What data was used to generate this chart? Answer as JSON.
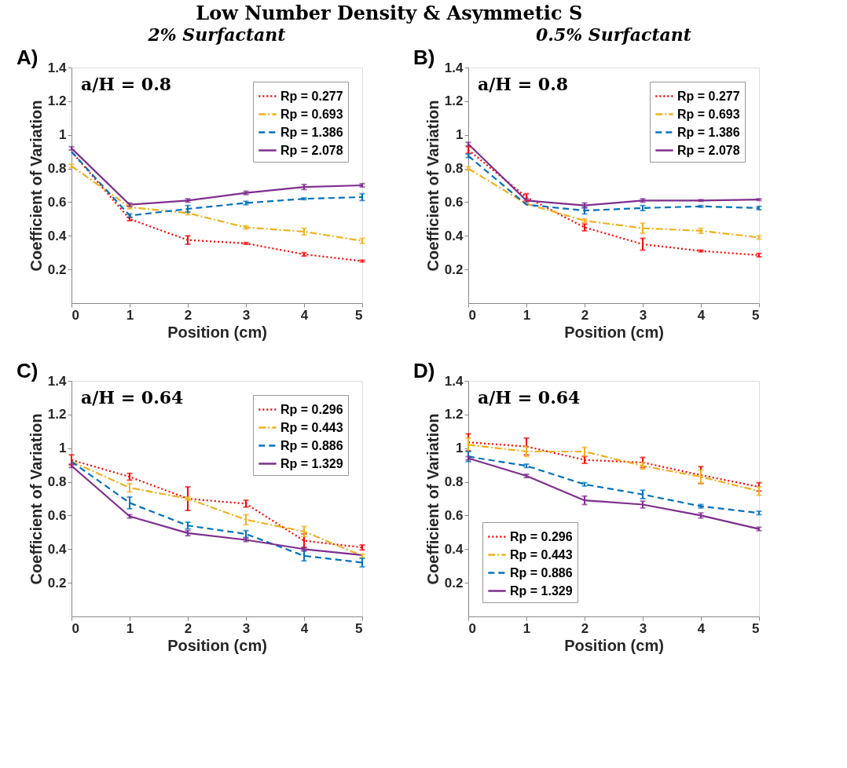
{
  "chart_data": [
    {
      "type": "line",
      "title": "Low Number Density & Asymmetic S",
      "subtitle": "2% Surfactant",
      "xlabel": "Position (cm)",
      "ylabel": "Coefficient of Variation",
      "annotations": [
        "A)",
        "a/H = 0.8"
      ],
      "x": [
        0,
        1,
        2,
        3,
        4,
        5
      ],
      "xlim": [
        0,
        5
      ],
      "xticks": [
        0,
        1,
        2,
        3,
        4,
        5
      ],
      "ylim": [
        0,
        1.4
      ],
      "yticks": [
        0.2,
        0.4,
        0.6,
        0.8,
        1,
        1.2,
        1.4
      ],
      "grid": false,
      "legend": "top right",
      "marker": "none",
      "series": [
        {
          "name": "Rp = 0.277",
          "color": "#ff0000",
          "line_style": "dotted",
          "values": [
            0.9,
            0.5,
            0.375,
            0.355,
            0.29,
            0.25
          ],
          "errors": [
            null,
            0.01,
            0.025,
            0.005,
            0.01,
            0.005
          ]
        },
        {
          "name": "Rp = 0.693",
          "color": "#edb120",
          "line_style": "dashdot",
          "values": [
            0.815,
            0.57,
            0.535,
            0.45,
            0.425,
            0.37
          ],
          "errors": [
            0.01,
            0.01,
            0.01,
            0.01,
            0.02,
            0.015
          ]
        },
        {
          "name": "Rp = 1.386",
          "color": "#0072bd",
          "line_style": "dashed",
          "values": [
            0.9,
            0.52,
            0.56,
            0.595,
            0.62,
            0.63
          ],
          "errors": [
            null,
            0.01,
            0.02,
            0.01,
            0.005,
            0.02
          ]
        },
        {
          "name": "Rp = 2.078",
          "color": "#7e2f8e",
          "line_style": "solid",
          "values": [
            0.92,
            0.585,
            0.61,
            0.655,
            0.69,
            0.7
          ],
          "errors": [
            0.01,
            0.01,
            0.01,
            0.01,
            0.015,
            0.01
          ]
        }
      ]
    },
    {
      "type": "line",
      "subtitle": "0.5% Surfactant",
      "xlabel": "Position (cm)",
      "ylabel": "Coefficient of Variation",
      "annotations": [
        "B)",
        "a/H = 0.8"
      ],
      "x": [
        0,
        1,
        2,
        3,
        4,
        5
      ],
      "xlim": [
        0,
        5
      ],
      "xticks": [
        0,
        1,
        2,
        3,
        4,
        5
      ],
      "ylim": [
        0,
        1.4
      ],
      "yticks": [
        0.2,
        0.4,
        0.6,
        0.8,
        1,
        1.2,
        1.4
      ],
      "grid": false,
      "legend": "top right",
      "marker": "none",
      "series": [
        {
          "name": "Rp = 0.277",
          "color": "#ff0000",
          "line_style": "dotted",
          "values": [
            0.91,
            0.63,
            0.45,
            0.35,
            0.31,
            0.285
          ],
          "errors": [
            0.02,
            0.02,
            0.02,
            0.035,
            0.005,
            0.01
          ]
        },
        {
          "name": "Rp = 0.693",
          "color": "#edb120",
          "line_style": "dashdot",
          "values": [
            0.8,
            0.59,
            0.49,
            0.445,
            0.43,
            0.39
          ],
          "errors": [
            0.01,
            null,
            0.01,
            0.03,
            0.015,
            0.01
          ]
        },
        {
          "name": "Rp = 1.386",
          "color": "#0072bd",
          "line_style": "dashed",
          "values": [
            0.875,
            0.585,
            0.55,
            0.565,
            0.575,
            0.565
          ],
          "errors": [
            0.01,
            null,
            0.02,
            0.015,
            0.005,
            0.01
          ]
        },
        {
          "name": "Rp = 2.078",
          "color": "#7e2f8e",
          "line_style": "solid",
          "values": [
            0.945,
            0.61,
            0.58,
            0.61,
            0.61,
            0.615
          ],
          "errors": [
            0.01,
            0.01,
            0.015,
            0.01,
            0.005,
            0.005
          ]
        }
      ]
    },
    {
      "type": "line",
      "xlabel": "Position (cm)",
      "ylabel": "Coefficient of Variation",
      "annotations": [
        "C)",
        "a/H = 0.64"
      ],
      "x": [
        0,
        1,
        2,
        3,
        4,
        5
      ],
      "xlim": [
        0,
        5
      ],
      "xticks": [
        0,
        1,
        2,
        3,
        4,
        5
      ],
      "ylim": [
        0,
        1.4
      ],
      "yticks": [
        0.2,
        0.4,
        0.6,
        0.8,
        1,
        1.2,
        1.4
      ],
      "grid": false,
      "legend": "top right",
      "marker": "none",
      "series": [
        {
          "name": "Rp = 0.296",
          "color": "#ff0000",
          "line_style": "dotted",
          "values": [
            0.93,
            0.83,
            0.7,
            0.67,
            0.45,
            0.41
          ],
          "errors": [
            0.03,
            0.02,
            0.07,
            0.02,
            0.04,
            0.015
          ]
        },
        {
          "name": "Rp = 0.443",
          "color": "#edb120",
          "line_style": "dashdot",
          "values": [
            0.92,
            0.765,
            0.7,
            0.575,
            0.505,
            0.36
          ],
          "errors": [
            null,
            0.025,
            0.01,
            0.03,
            0.03,
            0.01
          ]
        },
        {
          "name": "Rp = 0.886",
          "color": "#0072bd",
          "line_style": "dashed",
          "values": [
            0.92,
            0.675,
            0.54,
            0.49,
            0.36,
            0.32
          ],
          "errors": [
            null,
            0.035,
            0.02,
            0.02,
            0.03,
            0.025
          ]
        },
        {
          "name": "Rp = 1.329",
          "color": "#7e2f8e",
          "line_style": "solid",
          "values": [
            0.895,
            0.595,
            0.495,
            0.455,
            0.4,
            0.365
          ],
          "errors": [
            0.01,
            0.01,
            0.015,
            0.01,
            0.01,
            null
          ]
        }
      ]
    },
    {
      "type": "line",
      "xlabel": "Position (cm)",
      "ylabel": "Coefficient of Variation",
      "annotations": [
        "D)",
        "a/H = 0.64"
      ],
      "x": [
        0,
        1,
        2,
        3,
        4,
        5
      ],
      "xlim": [
        0,
        5
      ],
      "xticks": [
        0,
        1,
        2,
        3,
        4,
        5
      ],
      "ylim": [
        0,
        1.4
      ],
      "yticks": [
        0.2,
        0.4,
        0.6,
        0.8,
        1,
        1.2,
        1.4
      ],
      "grid": false,
      "legend": "bottom left",
      "marker": "none",
      "series": [
        {
          "name": "Rp = 0.296",
          "color": "#ff0000",
          "line_style": "dotted",
          "values": [
            1.035,
            1.01,
            0.93,
            0.915,
            0.84,
            0.77
          ],
          "errors": [
            0.05,
            0.05,
            0.02,
            0.03,
            0.05,
            0.025
          ]
        },
        {
          "name": "Rp = 0.443",
          "color": "#edb120",
          "line_style": "dashdot",
          "values": [
            1.02,
            0.98,
            0.98,
            0.895,
            0.83,
            0.745
          ],
          "errors": [
            0.04,
            0.03,
            0.025,
            0.02,
            0.04,
            0.025
          ]
        },
        {
          "name": "Rp = 0.886",
          "color": "#0072bd",
          "line_style": "dashed",
          "values": [
            0.95,
            0.895,
            0.785,
            0.725,
            0.655,
            0.615
          ],
          "errors": [
            0.03,
            0.01,
            0.01,
            0.025,
            0.01,
            0.01
          ]
        },
        {
          "name": "Rp = 1.329",
          "color": "#7e2f8e",
          "line_style": "solid",
          "values": [
            0.94,
            0.835,
            0.69,
            0.665,
            0.6,
            0.52
          ],
          "errors": [
            0.01,
            0.01,
            0.025,
            0.02,
            0.015,
            0.01
          ]
        }
      ]
    }
  ]
}
